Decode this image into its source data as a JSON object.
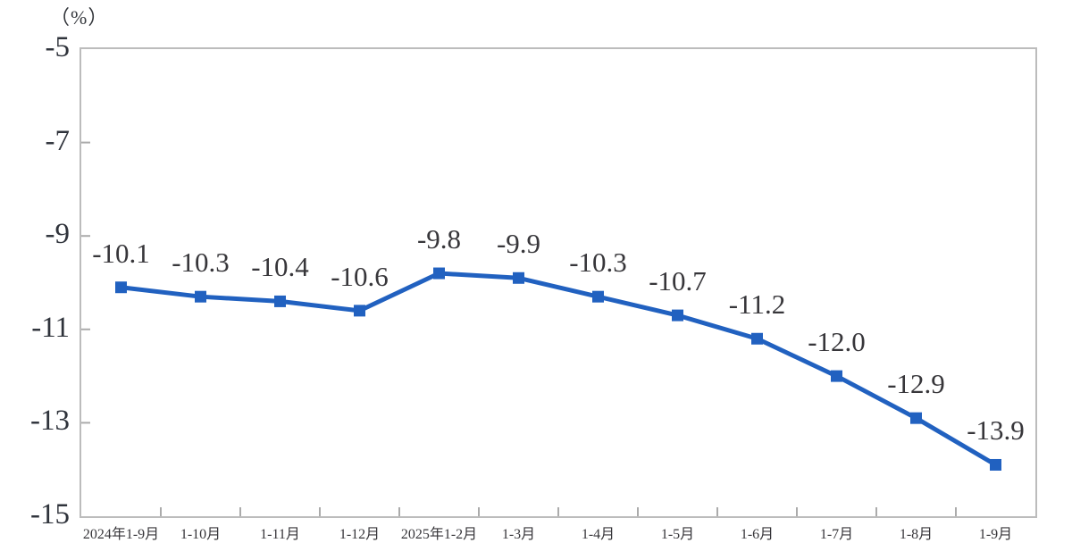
{
  "chart_data": {
    "type": "line",
    "title": "",
    "unit_label": "（%）",
    "categories": [
      "2024年1-9月",
      "1-10月",
      "1-11月",
      "1-12月",
      "2025年1-2月",
      "1-3月",
      "1-4月",
      "1-5月",
      "1-6月",
      "1-7月",
      "1-8月",
      "1-9月"
    ],
    "values": [
      -10.1,
      -10.3,
      -10.4,
      -10.6,
      -9.8,
      -9.9,
      -10.3,
      -10.7,
      -11.2,
      -12.0,
      -12.9,
      -13.9
    ],
    "xlabel": "",
    "ylabel": "(%)",
    "ylim": [
      -15,
      -5
    ],
    "y_ticks": [
      -5,
      -7,
      -9,
      -11,
      -13,
      -15
    ],
    "grid": false,
    "legend": false,
    "marker": "square",
    "data_label_decimals": 1,
    "colors": {
      "line": "#2161c0",
      "marker": "#2161c0",
      "axis_border": "#bcbcbc",
      "tick": "#ababab",
      "text": "#33363b"
    }
  }
}
